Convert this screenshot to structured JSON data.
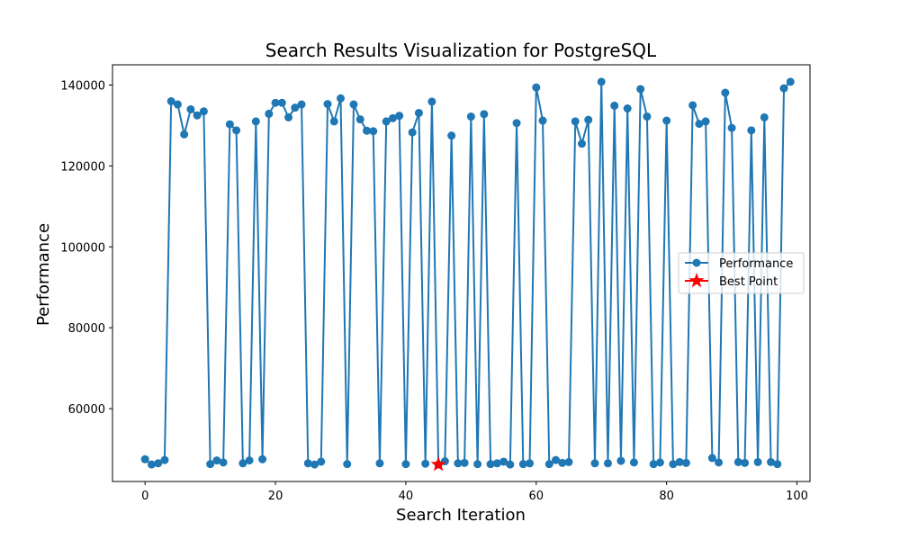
{
  "chart_data": {
    "type": "line",
    "title": "Search Results Visualization for PostgreSQL",
    "xlabel": "Search Iteration",
    "ylabel": "Performance",
    "xlim": [
      -5,
      102
    ],
    "ylim": [
      42000,
      145000
    ],
    "xticks": [
      0,
      20,
      40,
      60,
      80,
      100
    ],
    "yticks": [
      60000,
      80000,
      100000,
      120000,
      140000
    ],
    "grid": false,
    "legend_position": "center-right",
    "series": [
      {
        "name": "Performance",
        "color": "#1f77b4",
        "marker": "circle",
        "x": [
          0,
          1,
          2,
          3,
          4,
          5,
          6,
          7,
          8,
          9,
          10,
          11,
          12,
          13,
          14,
          15,
          16,
          17,
          18,
          19,
          20,
          21,
          22,
          23,
          24,
          25,
          26,
          27,
          28,
          29,
          30,
          31,
          32,
          33,
          34,
          35,
          36,
          37,
          38,
          39,
          40,
          41,
          42,
          43,
          44,
          45,
          46,
          47,
          48,
          49,
          50,
          51,
          52,
          53,
          54,
          55,
          56,
          57,
          58,
          59,
          60,
          61,
          62,
          63,
          64,
          65,
          66,
          67,
          68,
          69,
          70,
          71,
          72,
          73,
          74,
          75,
          76,
          77,
          78,
          79,
          80,
          81,
          82,
          83,
          84,
          85,
          86,
          87,
          88,
          89,
          90,
          91,
          92,
          93,
          94,
          95,
          96,
          97,
          98,
          99
        ],
        "values": [
          47500,
          46200,
          46500,
          47300,
          136000,
          135200,
          127800,
          134000,
          132500,
          133500,
          46300,
          47200,
          46700,
          130300,
          128800,
          46500,
          47200,
          131000,
          47500,
          132900,
          135600,
          135600,
          132000,
          134400,
          135200,
          46500,
          46200,
          46900,
          135300,
          131000,
          136700,
          46300,
          135200,
          131500,
          128700,
          128600,
          46500,
          131000,
          131800,
          132400,
          46300,
          128300,
          133100,
          46400,
          135900,
          46200,
          47000,
          127500,
          46500,
          46600,
          132200,
          46300,
          132800,
          46300,
          46500,
          46900,
          46200,
          130600,
          46300,
          46500,
          139400,
          131200,
          46300,
          47300,
          46600,
          46800,
          131000,
          125500,
          131400,
          46500,
          140800,
          46500,
          134900,
          47100,
          134200,
          46700,
          139000,
          132200,
          46300,
          46700,
          131200,
          46300,
          46800,
          46600,
          135000,
          130400,
          131000,
          47800,
          46700,
          138100,
          129400,
          46800,
          46600,
          128800,
          46800,
          132000,
          46800,
          46300,
          139200,
          140800
        ]
      },
      {
        "name": "Best Point",
        "color": "#ff0000",
        "marker": "star",
        "x": [
          45
        ],
        "values": [
          46200
        ]
      }
    ]
  }
}
